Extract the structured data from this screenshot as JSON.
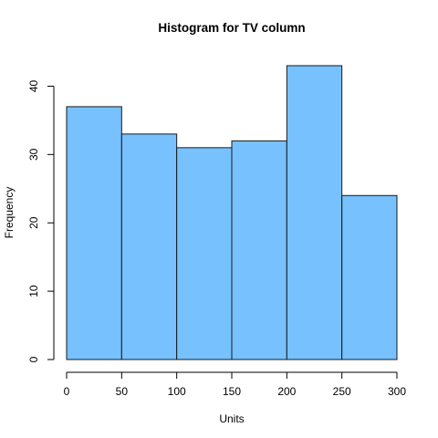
{
  "chart_data": {
    "type": "bar",
    "title": "Histogram for  TV column",
    "xlabel": "Units",
    "ylabel": "Frequency",
    "bins": [
      {
        "from": 0,
        "to": 50,
        "count": 37
      },
      {
        "from": 50,
        "to": 100,
        "count": 33
      },
      {
        "from": 100,
        "to": 150,
        "count": 31
      },
      {
        "from": 150,
        "to": 200,
        "count": 32
      },
      {
        "from": 200,
        "to": 250,
        "count": 43
      },
      {
        "from": 250,
        "to": 300,
        "count": 24
      }
    ],
    "xlim": [
      0,
      300
    ],
    "ylim": [
      0,
      45
    ],
    "xticks": [
      0,
      50,
      100,
      150,
      200,
      250,
      300
    ],
    "yticks": [
      0,
      10,
      20,
      30,
      40
    ],
    "bar_color": "#77C1FF",
    "grid": false,
    "legend": "none"
  }
}
